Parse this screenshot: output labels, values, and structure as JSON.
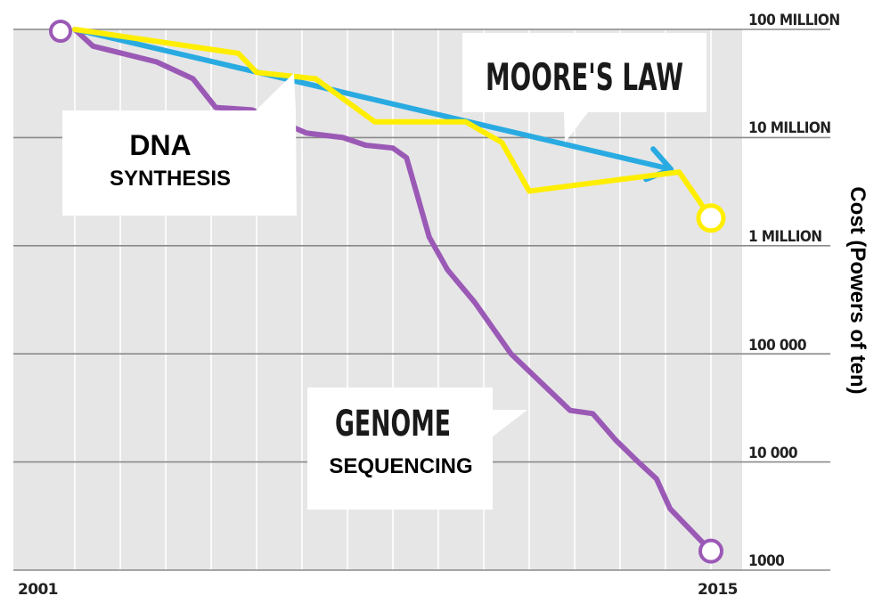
{
  "chart_data": {
    "type": "line",
    "y_scale": "log",
    "ylabel": "Cost (Powers of ten)",
    "xlabel": "",
    "x_range": [
      2001,
      2015
    ],
    "x_tick_labels": [
      "2001",
      "2015"
    ],
    "ylim": [
      1000,
      100000000
    ],
    "y_tick_labels": [
      "100 MILLION",
      "10 MILLION",
      "1 MILLION",
      "100 000",
      "10 000",
      "1000"
    ],
    "grid": true,
    "series": [
      {
        "name": "MOORE'S LAW",
        "color": "#29abe2",
        "x": [
          2001,
          2015
        ],
        "y": [
          100000000,
          3000000
        ]
      },
      {
        "name": "DNA SYNTHESIS",
        "name_lines": [
          "DNA",
          "SYNTHESIS"
        ],
        "color": "#ffee00",
        "x": [
          2001,
          2004.6,
          2005,
          2006.3,
          2007.6,
          2009.6,
          2010.4,
          2011,
          2014.3,
          2015
        ],
        "y": [
          100000000,
          60000000,
          40000000,
          35000000,
          14000000,
          14000000,
          9000000,
          3200000,
          4800000,
          1800000
        ]
      },
      {
        "name": "GENOME SEQUENCING",
        "name_lines": [
          "GENOME",
          "SEQUENCING"
        ],
        "color": "#9b59b6",
        "x": [
          2001,
          2001.4,
          2002.8,
          2003.6,
          2004.1,
          2004.9,
          2006.1,
          2006.9,
          2007.4,
          2008,
          2008.3,
          2008.8,
          2009.2,
          2009.8,
          2010.6,
          2011.9,
          2012.4,
          2012.9,
          2013.4,
          2013.8,
          2014.1,
          2015
        ],
        "y": [
          100000000,
          70000000,
          50000000,
          35000000,
          19000000,
          18000000,
          11000000,
          10000000,
          8500000,
          8000000,
          6500000,
          1200000,
          600000,
          300000,
          100000,
          30000,
          28000,
          16000,
          10000,
          7000,
          3700,
          1500
        ]
      }
    ]
  }
}
